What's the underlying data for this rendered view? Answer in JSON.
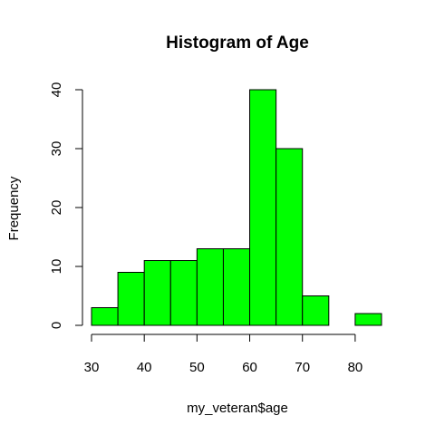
{
  "chart_data": {
    "type": "bar",
    "title": "Histogram of Age",
    "xlabel": "my_veteran$age",
    "ylabel": "Frequency",
    "bins": [
      {
        "start": 30,
        "end": 35,
        "count": 3
      },
      {
        "start": 35,
        "end": 40,
        "count": 9
      },
      {
        "start": 40,
        "end": 45,
        "count": 11
      },
      {
        "start": 45,
        "end": 50,
        "count": 11
      },
      {
        "start": 50,
        "end": 55,
        "count": 13
      },
      {
        "start": 55,
        "end": 60,
        "count": 13
      },
      {
        "start": 60,
        "end": 65,
        "count": 40
      },
      {
        "start": 65,
        "end": 70,
        "count": 30
      },
      {
        "start": 70,
        "end": 75,
        "count": 5
      },
      {
        "start": 75,
        "end": 80,
        "count": 0
      },
      {
        "start": 80,
        "end": 85,
        "count": 2
      }
    ],
    "xticks": [
      30,
      40,
      50,
      60,
      70,
      80
    ],
    "yticks": [
      0,
      10,
      20,
      30,
      40
    ],
    "xlim": [
      30,
      85
    ],
    "ylim": [
      0,
      40
    ],
    "bar_color": "#00ff00",
    "edge_color": "#000000",
    "grid": false,
    "legend": "none"
  }
}
